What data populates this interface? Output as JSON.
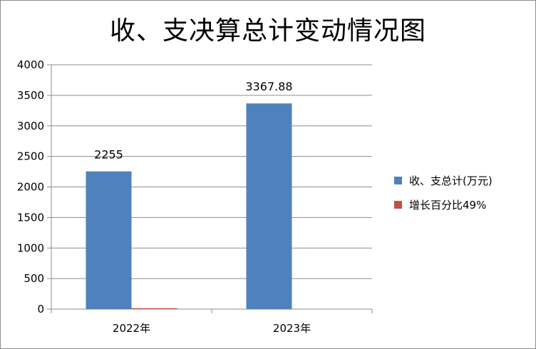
{
  "chart_data": {
    "type": "bar",
    "title": "收、支决算总计变动情况图",
    "categories": [
      "2022年",
      "2023年"
    ],
    "series": [
      {
        "name": "收、支总计(万元)",
        "values": [
          2255,
          3367.88
        ],
        "color": "#4f81bd",
        "labels": [
          "2255",
          "3367.88"
        ]
      },
      {
        "name": "增长百分比49%",
        "values": [
          15,
          0
        ],
        "color": "#c0504d",
        "labels": []
      }
    ],
    "yticks": [
      "0",
      "500",
      "1000",
      "1500",
      "2000",
      "2500",
      "3000",
      "3500",
      "4000"
    ],
    "ylim": [
      0,
      4000
    ],
    "grid": true,
    "legend": "right"
  }
}
